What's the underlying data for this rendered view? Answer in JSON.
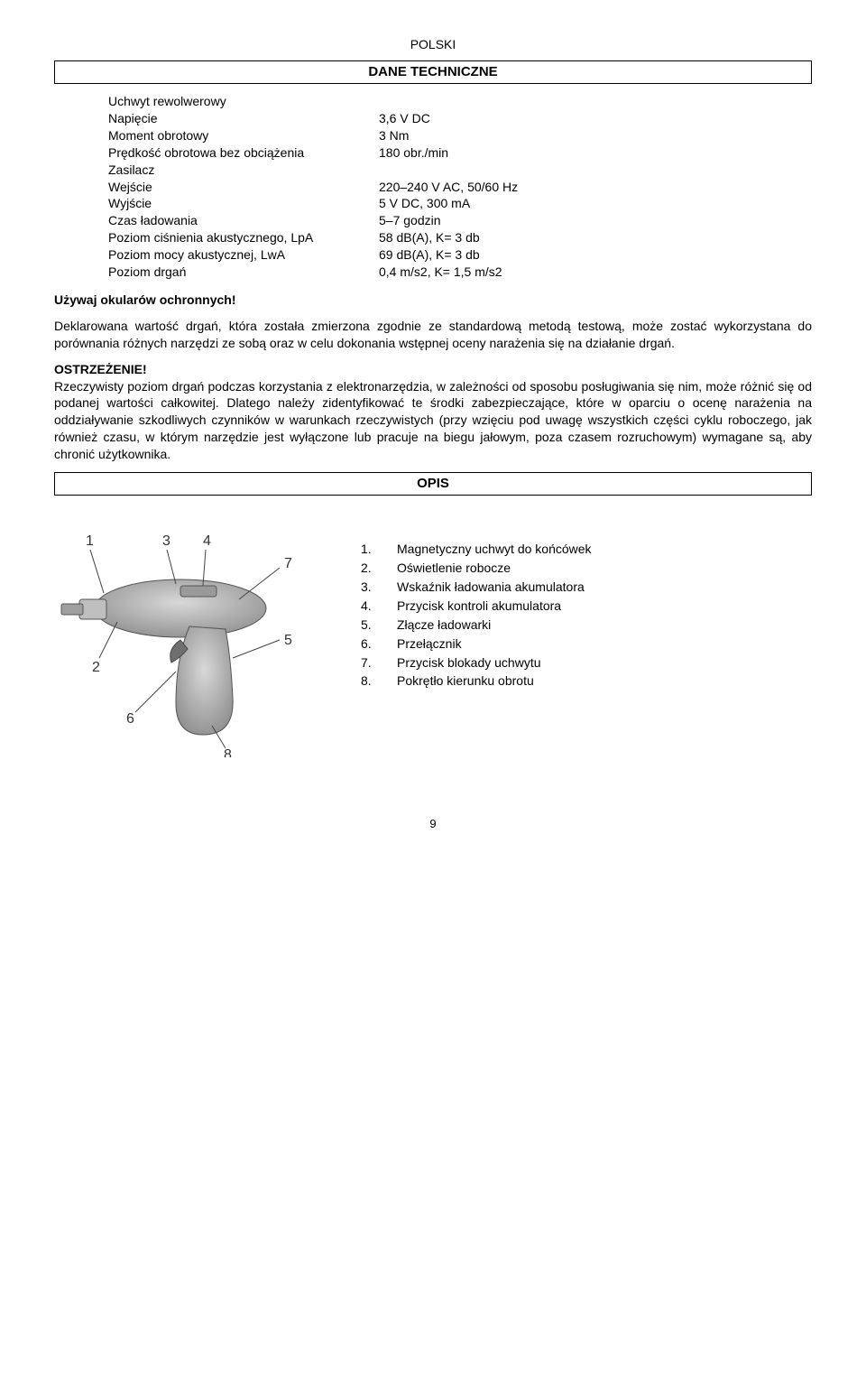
{
  "header": "POLSKI",
  "section1": {
    "title": "DANE TECHNICZNE",
    "rows": [
      {
        "label": "Uchwyt rewolwerowy",
        "value": ""
      },
      {
        "label": "Napięcie",
        "value": "3,6 V DC"
      },
      {
        "label": "Moment obrotowy",
        "value": "3 Nm"
      },
      {
        "label": "Prędkość obrotowa bez obciążenia",
        "value": "180 obr./min"
      },
      {
        "label": "Zasilacz",
        "value": ""
      },
      {
        "label": "Wejście",
        "value": "220–240 V AC, 50/60 Hz"
      },
      {
        "label": "Wyjście",
        "value": "5 V DC, 300 mA"
      },
      {
        "label": "Czas ładowania",
        "value": "5–7 godzin"
      },
      {
        "label": "Poziom ciśnienia akustycznego, LpA",
        "value": "58 dB(A), K= 3 db"
      },
      {
        "label": "Poziom mocy akustycznej, LwA",
        "value": "69 dB(A), K= 3 db"
      },
      {
        "label": "Poziom drgań",
        "value": "0,4 m/s2, K= 1,5 m/s2"
      }
    ]
  },
  "glasses_warning": "Używaj okularów ochronnych!",
  "para1": "Deklarowana wartość drgań, która została zmierzona zgodnie ze standardową metodą testową, może zostać wykorzystana do porównania różnych narzędzi ze sobą oraz w celu dokonania wstępnej oceny narażenia się na działanie drgań.",
  "warn_title": "OSTRZEŻENIE!",
  "para2": "Rzeczywisty poziom drgań podczas korzystania z elektronarzędzia, w zależności od sposobu posługiwania się nim, może różnić się od podanej wartości całkowitej. Dlatego należy zidentyfikować te środki zabezpieczające, które w oparciu o ocenę narażenia na oddziaływanie szkodliwych czynników w warunkach rzeczywistych (przy wzięciu pod uwagę wszystkich części cyklu roboczego, jak również czasu, w którym narzędzie jest wyłączone lub pracuje na biegu jałowym, poza czasem rozruchowym) wymagane są, aby chronić użytkownika.",
  "section2": {
    "title": "OPIS",
    "items": [
      {
        "num": "1.",
        "label": "Magnetyczny uchwyt do końcówek"
      },
      {
        "num": "2.",
        "label": "Oświetlenie robocze"
      },
      {
        "num": "3.",
        "label": "Wskaźnik ładowania akumulatora"
      },
      {
        "num": "4.",
        "label": "Przycisk kontroli akumulatora"
      },
      {
        "num": "5.",
        "label": "Złącze ładowarki"
      },
      {
        "num": "6.",
        "label": "Przełącznik"
      },
      {
        "num": "7.",
        "label": "Przycisk blokady uchwytu"
      },
      {
        "num": "8.",
        "label": "Pokrętło kierunku obrotu"
      }
    ]
  },
  "page_number": "9",
  "diagram": {
    "callouts": [
      "1",
      "2",
      "3",
      "4",
      "5",
      "6",
      "7",
      "8"
    ]
  }
}
